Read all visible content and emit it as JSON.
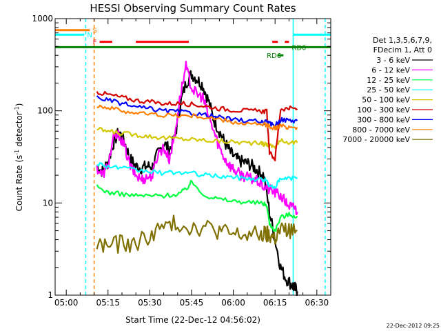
{
  "chart_data": {
    "type": "line",
    "title": "HESSI Observing Summary Count Rates",
    "xlabel": "Start Time (22-Dec-12 04:56:02)",
    "ylabel_prefix": "Count Rate (s",
    "ylabel_sup": "-1",
    "ylabel_suffix": " detector",
    "ylabel_end": ")",
    "y_scale": "log",
    "ylim": [
      1,
      1000
    ],
    "xlim_minutes": [
      296,
      395
    ],
    "x_tick_minutes": [
      300,
      315,
      330,
      345,
      360,
      375,
      390
    ],
    "x_tick_labels": [
      "05:00",
      "05:15",
      "05:30",
      "05:45",
      "06:00",
      "06:15",
      "06:30"
    ],
    "y_tick_values": [
      1,
      10,
      100,
      1000
    ],
    "y_tick_labels": [
      "1",
      "10",
      "100",
      "1000"
    ],
    "legend_header": [
      "Det 1,3,5,6,7,9,",
      "FDecim 1, Att 0"
    ],
    "legend_position": "right",
    "footer": "22-Dec-2012 09:25",
    "series": [
      {
        "name": "3 - 6 keV",
        "color": "#000000",
        "x": [
          311,
          313,
          315,
          317,
          319,
          321,
          323,
          325,
          327,
          329,
          331,
          333,
          335,
          337,
          339,
          341,
          343,
          345,
          347,
          349,
          351,
          353,
          355,
          357,
          359,
          361,
          363,
          365,
          367,
          369,
          371,
          373,
          375,
          377,
          379,
          381,
          382,
          383
        ],
        "y": [
          25,
          22,
          28,
          45,
          60,
          45,
          30,
          25,
          24,
          25,
          25,
          35,
          45,
          38,
          50,
          120,
          200,
          250,
          220,
          190,
          130,
          80,
          60,
          45,
          35,
          30,
          28,
          27,
          25,
          22,
          20,
          8,
          4,
          2,
          1.5,
          1.3,
          1.2,
          1.1
        ]
      },
      {
        "name": "6 - 12 keV",
        "color": "#ff00ff",
        "x": [
          311,
          313,
          315,
          317,
          319,
          321,
          323,
          325,
          327,
          329,
          331,
          333,
          335,
          337,
          339,
          341,
          343,
          345,
          347,
          349,
          351,
          353,
          355,
          357,
          359,
          361,
          363,
          365,
          367,
          369,
          371,
          373,
          375,
          377,
          379,
          381,
          382,
          383
        ],
        "y": [
          24,
          20,
          26,
          50,
          55,
          40,
          25,
          20,
          18,
          19,
          20,
          35,
          40,
          30,
          55,
          150,
          300,
          180,
          150,
          140,
          90,
          60,
          40,
          30,
          25,
          22,
          20,
          19,
          18,
          17,
          15,
          14,
          13,
          12,
          10,
          9,
          9,
          8
        ]
      },
      {
        "name": "12 - 25 keV",
        "color": "#00ff40",
        "x": [
          311,
          315,
          320,
          325,
          330,
          335,
          340,
          343,
          345,
          350,
          355,
          360,
          365,
          370,
          372,
          373,
          375,
          377,
          380,
          383
        ],
        "y": [
          15,
          13,
          12.5,
          12,
          12,
          12,
          12.5,
          14,
          17,
          12,
          11,
          10.5,
          10.2,
          10,
          9.5,
          6,
          5,
          7,
          7.5,
          7.2
        ]
      },
      {
        "name": "25 - 50 keV",
        "color": "#00ffff",
        "x": [
          311,
          315,
          320,
          325,
          330,
          335,
          340,
          345,
          350,
          355,
          360,
          365,
          370,
          372,
          373,
          375,
          377,
          380,
          383
        ],
        "y": [
          27,
          25,
          24,
          22.5,
          22,
          21,
          21.5,
          21,
          20,
          19.5,
          19,
          18.5,
          18,
          17.5,
          15,
          15,
          18,
          18.5,
          18.5
        ]
      },
      {
        "name": "50 - 100 keV",
        "color": "#d4c800",
        "x": [
          311,
          315,
          320,
          325,
          330,
          335,
          340,
          345,
          350,
          355,
          360,
          365,
          370,
          372,
          373,
          375,
          377,
          380,
          383
        ],
        "y": [
          63,
          60,
          57,
          55,
          53,
          51,
          50,
          49,
          48,
          47,
          46,
          45,
          44,
          43,
          42,
          41,
          47,
          46,
          45
        ]
      },
      {
        "name": "100 - 300 keV",
        "color": "#d40000",
        "x": [
          311,
          315,
          320,
          325,
          330,
          335,
          340,
          345,
          350,
          355,
          360,
          365,
          370,
          372,
          373,
          375,
          377,
          380,
          383
        ],
        "y": [
          160,
          150,
          140,
          130,
          125,
          120,
          120,
          118,
          112,
          106,
          102,
          100,
          99,
          98,
          35,
          30,
          105,
          106,
          105
        ]
      },
      {
        "name": "300 - 800 keV",
        "color": "#0000ff",
        "x": [
          311,
          315,
          320,
          325,
          330,
          335,
          340,
          345,
          350,
          355,
          360,
          365,
          370,
          372,
          373,
          375,
          377,
          380,
          383
        ],
        "y": [
          140,
          130,
          120,
          110,
          105,
          100,
          98,
          95,
          90,
          85,
          80,
          78,
          76,
          75,
          72,
          70,
          80,
          79,
          78
        ]
      },
      {
        "name": "800 - 7000 keV",
        "color": "#ff8000",
        "x": [
          311,
          315,
          320,
          325,
          330,
          335,
          340,
          345,
          350,
          355,
          360,
          365,
          370,
          372,
          373,
          375,
          377,
          380,
          383
        ],
        "y": [
          115,
          108,
          100,
          95,
          92,
          90,
          89,
          88,
          85,
          80,
          75,
          72,
          70,
          70,
          68,
          65,
          68,
          67,
          66
        ]
      },
      {
        "name": "7000 - 20000 keV",
        "color": "#807000",
        "x": [
          311,
          315,
          320,
          325,
          330,
          335,
          340,
          345,
          350,
          355,
          360,
          365,
          370,
          372,
          373,
          375,
          377,
          380,
          383
        ],
        "y": [
          3.5,
          3.5,
          3.6,
          3.6,
          4.5,
          5.5,
          6,
          5.5,
          5.5,
          5,
          4.5,
          4.5,
          4.5,
          4.5,
          4.5,
          4.2,
          5,
          5,
          5
        ]
      }
    ],
    "vertical_lines": [
      {
        "x_minute": 307,
        "color": "#00ffff",
        "style": "dashed"
      },
      {
        "x_minute": 310,
        "color": "#ff8000",
        "style": "dashed"
      },
      {
        "x_minute": 381.5,
        "color": "#00ffff",
        "style": "solid"
      },
      {
        "x_minute": 393,
        "color": "#00ffff",
        "style": "dashed"
      }
    ],
    "flag_bars": [
      {
        "label": "S",
        "color": "#ff8000",
        "y": 750,
        "segments": [
          [
            296,
            308.5
          ]
        ]
      },
      {
        "label": "N",
        "color": "#00ffff",
        "y": 670,
        "segments": [
          [
            296,
            306.5
          ]
        ]
      },
      {
        "label": "",
        "color": "#00ffff",
        "y": 670,
        "segments": [
          [
            381.5,
            395
          ]
        ]
      },
      {
        "label": "F",
        "color": "#ff0000",
        "y": 560,
        "segments": [
          [
            312,
            316.5
          ],
          [
            325,
            344
          ],
          [
            374,
            376
          ],
          [
            378.5,
            380
          ]
        ]
      },
      {
        "label": "RD0",
        "color": "#008000",
        "y": 490,
        "segments": [
          [
            296,
            395
          ]
        ]
      },
      {
        "label": "RD6",
        "color": "#008000",
        "y": 400,
        "segments": [
          [
            376,
            378
          ]
        ]
      }
    ]
  }
}
